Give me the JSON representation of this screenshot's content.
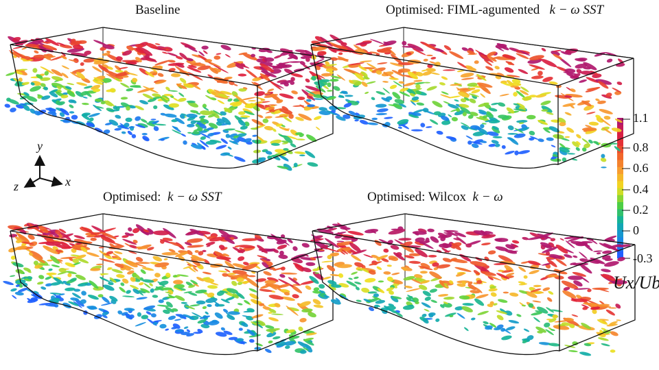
{
  "panels": [
    {
      "title": "Baseline",
      "title_math": ""
    },
    {
      "title": "Optimised: FIML-agumented",
      "title_math": "k − ω   SST"
    },
    {
      "title": "Optimised:",
      "title_math": "k − ω   SST"
    },
    {
      "title": "Optimised: Wilcox",
      "title_math": "k − ω"
    }
  ],
  "axes_triad": {
    "x": "x",
    "y": "y",
    "z": "z"
  },
  "colorbar": {
    "label": "Ux/Ub",
    "min": -0.3,
    "max": 1.1,
    "ticks": [
      "1.1",
      "0.8",
      "0.6",
      "0.4",
      "0.2",
      "0",
      "-0.3"
    ],
    "colors": [
      "#b0186e",
      "#e0203a",
      "#f0602a",
      "#f8a030",
      "#f0e020",
      "#50d040",
      "#10b0a0",
      "#1890e0",
      "#2060ff"
    ]
  }
}
